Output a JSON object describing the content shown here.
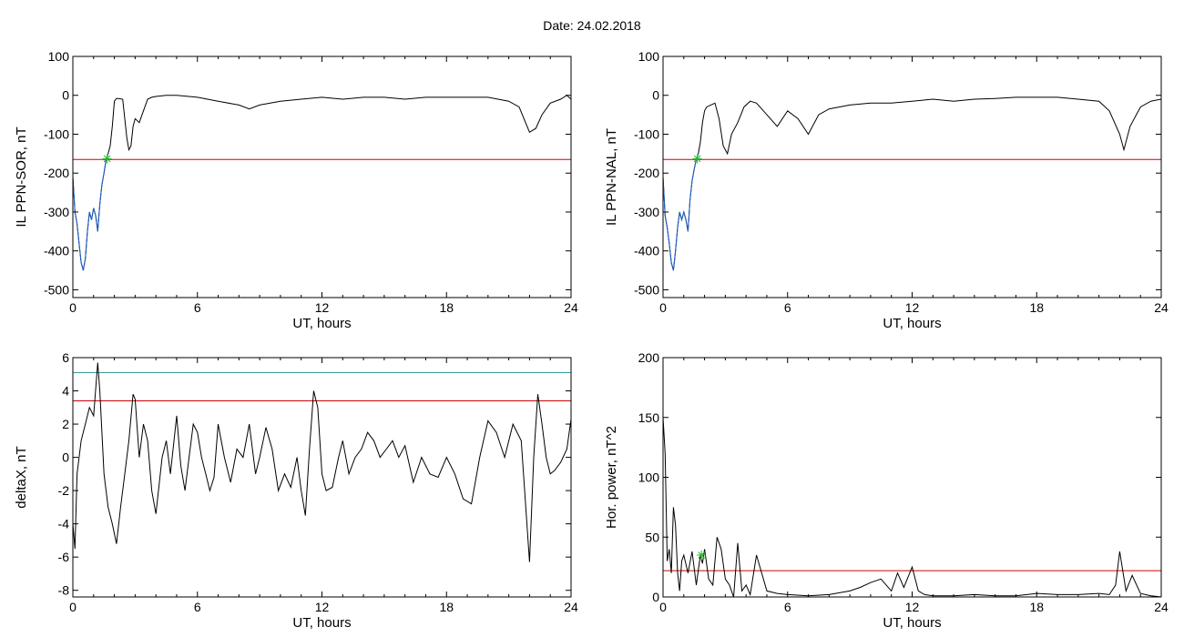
{
  "figure": {
    "date_label": "Date:",
    "date_value": "24.02.2018"
  },
  "colors": {
    "axis": "#000000",
    "series": "#000000",
    "threshold": "#cc0000",
    "threshold_alt": "#3a9a9a",
    "highlight": "#1a5fc8",
    "marker": "#22bb22"
  },
  "chart_data": [
    {
      "id": "il-sor",
      "type": "line",
      "ylabel": "IL PPN-SOR, nT",
      "xlabel": "UT, hours",
      "xlim": [
        0,
        24
      ],
      "ylim": [
        -520,
        100
      ],
      "xticks": [
        0,
        6,
        12,
        18,
        24
      ],
      "yticks": [
        100,
        0,
        -100,
        -200,
        -300,
        -400,
        -500
      ],
      "thresholds": [
        {
          "y": -165,
          "color": "threshold"
        }
      ],
      "highlight_range": [
        0,
        1.7
      ],
      "marker": {
        "x": 1.65,
        "y": -163
      },
      "series": [
        {
          "x": [
            0,
            0.1,
            0.2,
            0.3,
            0.4,
            0.5,
            0.6,
            0.7,
            0.8,
            0.9,
            1.0,
            1.1,
            1.2,
            1.3,
            1.4,
            1.5,
            1.6,
            1.7,
            1.8,
            1.9,
            2.0,
            2.1,
            2.2,
            2.4,
            2.6,
            2.7,
            2.8,
            2.9,
            3.0,
            3.2,
            3.4,
            3.6,
            3.8,
            4.0,
            4.5,
            5,
            6,
            7,
            8,
            8.5,
            9,
            10,
            11,
            12,
            13,
            14,
            15,
            16,
            17,
            18,
            19,
            20,
            21,
            21.5,
            22,
            22.3,
            22.6,
            23,
            23.5,
            23.8,
            24
          ],
          "y": [
            -210,
            -300,
            -330,
            -380,
            -430,
            -450,
            -420,
            -350,
            -300,
            -320,
            -290,
            -310,
            -350,
            -280,
            -230,
            -200,
            -165,
            -150,
            -130,
            -80,
            -15,
            -8,
            -8,
            -10,
            -110,
            -140,
            -130,
            -80,
            -60,
            -70,
            -40,
            -10,
            -5,
            -3,
            0,
            0,
            -5,
            -15,
            -25,
            -35,
            -25,
            -15,
            -10,
            -5,
            -10,
            -5,
            -5,
            -10,
            -5,
            -5,
            -5,
            -5,
            -15,
            -30,
            -95,
            -85,
            -50,
            -20,
            -10,
            0,
            -10
          ]
        }
      ]
    },
    {
      "id": "il-nal",
      "type": "line",
      "ylabel": "IL PPN-NAL, nT",
      "xlabel": "UT, hours",
      "xlim": [
        0,
        24
      ],
      "ylim": [
        -520,
        100
      ],
      "xticks": [
        0,
        6,
        12,
        18,
        24
      ],
      "yticks": [
        100,
        0,
        -100,
        -200,
        -300,
        -400,
        -500
      ],
      "thresholds": [
        {
          "y": -165,
          "color": "threshold"
        }
      ],
      "highlight_range": [
        0,
        1.7
      ],
      "marker": {
        "x": 1.65,
        "y": -163
      },
      "series": [
        {
          "x": [
            0,
            0.1,
            0.2,
            0.3,
            0.4,
            0.5,
            0.6,
            0.7,
            0.8,
            0.9,
            1.0,
            1.1,
            1.2,
            1.3,
            1.4,
            1.5,
            1.6,
            1.7,
            1.8,
            1.9,
            2.0,
            2.1,
            2.3,
            2.5,
            2.7,
            2.9,
            3.1,
            3.3,
            3.6,
            3.9,
            4.2,
            4.5,
            5,
            5.5,
            6,
            6.5,
            7,
            7.5,
            8,
            9,
            10,
            11,
            12,
            13,
            14,
            15,
            16,
            17,
            18,
            19,
            20,
            21,
            21.5,
            22,
            22.2,
            22.5,
            23,
            23.5,
            24
          ],
          "y": [
            -210,
            -310,
            -340,
            -380,
            -430,
            -450,
            -400,
            -340,
            -300,
            -320,
            -300,
            -320,
            -350,
            -270,
            -220,
            -190,
            -165,
            -150,
            -120,
            -70,
            -40,
            -30,
            -25,
            -20,
            -60,
            -130,
            -150,
            -100,
            -70,
            -30,
            -15,
            -20,
            -50,
            -80,
            -40,
            -60,
            -100,
            -50,
            -35,
            -25,
            -20,
            -20,
            -15,
            -10,
            -15,
            -10,
            -8,
            -5,
            -5,
            -5,
            -10,
            -15,
            -40,
            -100,
            -140,
            -80,
            -30,
            -15,
            -10
          ]
        }
      ]
    },
    {
      "id": "delta-x",
      "type": "line",
      "ylabel": "deltaX, nT",
      "xlabel": "UT, hours",
      "xlim": [
        0,
        24
      ],
      "ylim": [
        -8.4,
        6
      ],
      "xticks": [
        0,
        6,
        12,
        18,
        24
      ],
      "yticks": [
        6,
        4,
        2,
        0,
        -2,
        -4,
        -6,
        -8
      ],
      "thresholds": [
        {
          "y": 5.1,
          "color": "threshold_alt"
        },
        {
          "y": 3.4,
          "color": "threshold"
        }
      ],
      "series": [
        {
          "x": [
            0,
            0.1,
            0.2,
            0.4,
            0.6,
            0.8,
            1.0,
            1.2,
            1.3,
            1.5,
            1.7,
            1.9,
            2.1,
            2.3,
            2.5,
            2.7,
            2.9,
            3.0,
            3.2,
            3.4,
            3.6,
            3.8,
            4.0,
            4.3,
            4.5,
            4.7,
            5.0,
            5.2,
            5.4,
            5.6,
            5.8,
            6.0,
            6.2,
            6.4,
            6.6,
            6.8,
            7.0,
            7.3,
            7.6,
            7.9,
            8.2,
            8.5,
            8.8,
            9.0,
            9.3,
            9.6,
            9.9,
            10.2,
            10.5,
            10.8,
            11.0,
            11.2,
            11.4,
            11.6,
            11.8,
            12.0,
            12.2,
            12.5,
            12.8,
            13.0,
            13.3,
            13.6,
            13.9,
            14.2,
            14.5,
            14.8,
            15.1,
            15.4,
            15.7,
            16.0,
            16.4,
            16.8,
            17.2,
            17.6,
            18.0,
            18.4,
            18.8,
            19.2,
            19.6,
            20.0,
            20.4,
            20.8,
            21.2,
            21.6,
            22.0,
            22.2,
            22.4,
            22.6,
            22.8,
            23.0,
            23.2,
            23.5,
            23.8,
            24
          ],
          "y": [
            -4,
            -5.5,
            -1,
            1,
            2,
            3,
            2.5,
            5.7,
            4,
            -1,
            -3,
            -4,
            -5.2,
            -3,
            -1,
            1,
            3.8,
            3.5,
            0,
            2,
            1,
            -2,
            -3.4,
            0,
            1,
            -1,
            2.5,
            -0.5,
            -2,
            0,
            2,
            1.5,
            0,
            -1,
            -2,
            -1.2,
            2,
            0,
            -1.5,
            0.5,
            0,
            2,
            -1,
            0,
            1.8,
            0.5,
            -2,
            -1,
            -1.8,
            0,
            -2,
            -3.5,
            0.5,
            4,
            3,
            -1,
            -2,
            -1.8,
            0,
            1,
            -1,
            0,
            0.5,
            1.5,
            1,
            0,
            0.5,
            1,
            0,
            0.7,
            -1.5,
            0,
            -1,
            -1.2,
            0,
            -1,
            -2.5,
            -2.8,
            0,
            2.2,
            1.5,
            0,
            2,
            1,
            -6.3,
            0,
            3.8,
            2,
            0,
            -1,
            -0.8,
            -0.3,
            0.5,
            2.3
          ]
        }
      ]
    },
    {
      "id": "hor-power",
      "type": "line",
      "ylabel": "Hor. power, nT^2",
      "xlabel": "UT, hours",
      "xlim": [
        0,
        24
      ],
      "ylim": [
        0,
        200
      ],
      "xticks": [
        0,
        6,
        12,
        18,
        24
      ],
      "yticks": [
        200,
        150,
        100,
        50,
        0
      ],
      "thresholds": [
        {
          "y": 22,
          "color": "threshold"
        }
      ],
      "marker": {
        "x": 1.85,
        "y": 35
      },
      "series": [
        {
          "x": [
            0,
            0.1,
            0.2,
            0.3,
            0.4,
            0.5,
            0.6,
            0.7,
            0.8,
            0.9,
            1.0,
            1.2,
            1.4,
            1.6,
            1.8,
            1.9,
            2.0,
            2.2,
            2.4,
            2.6,
            2.8,
            3.0,
            3.2,
            3.4,
            3.6,
            3.8,
            4.0,
            4.2,
            4.5,
            5,
            5.5,
            6,
            7,
            8,
            9,
            9.5,
            10,
            10.5,
            11,
            11.3,
            11.6,
            12,
            12.3,
            12.6,
            13,
            14,
            15,
            16,
            17,
            18,
            19,
            20,
            21,
            21.5,
            21.8,
            22,
            22.3,
            22.6,
            23,
            23.5,
            24
          ],
          "y": [
            150,
            120,
            30,
            40,
            20,
            75,
            60,
            20,
            5,
            30,
            35,
            20,
            38,
            10,
            35,
            28,
            40,
            15,
            10,
            50,
            40,
            15,
            10,
            0,
            45,
            5,
            10,
            2,
            35,
            5,
            3,
            2,
            1,
            2,
            5,
            8,
            12,
            15,
            5,
            20,
            8,
            25,
            5,
            2,
            1,
            1,
            2,
            1,
            1,
            3,
            2,
            2,
            3,
            2,
            10,
            38,
            5,
            18,
            3,
            1,
            0
          ]
        }
      ]
    }
  ]
}
